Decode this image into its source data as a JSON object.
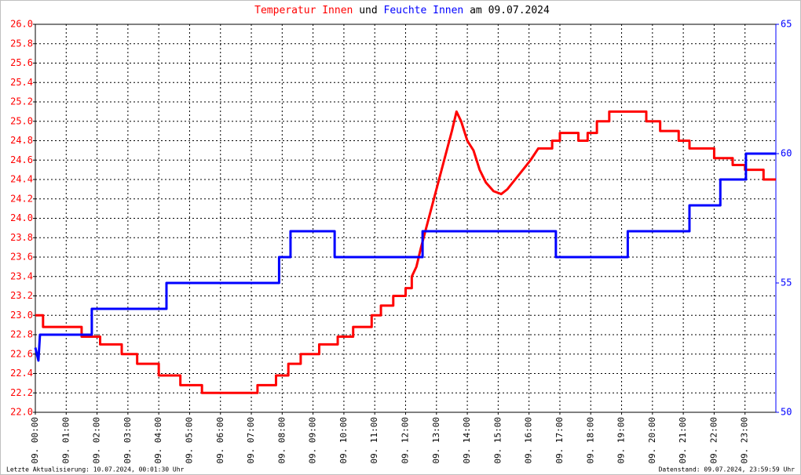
{
  "chart_data": {
    "type": "line",
    "title_connector": "und",
    "title_date": "am 09.07.2024",
    "footer_left": "Letzte Aktualisierung: 10.07.2024, 00:01:30 Uhr",
    "footer_right": "Datenstand: 09.07.2024, 23:59:59 Uhr",
    "grid": true,
    "xlim": [
      0,
      24
    ],
    "xticks": [
      {
        "value": 0,
        "label": "09. 00:00"
      },
      {
        "value": 1,
        "label": "09. 01:00"
      },
      {
        "value": 2,
        "label": "09. 02:00"
      },
      {
        "value": 3,
        "label": "09. 03:00"
      },
      {
        "value": 4,
        "label": "09. 04:00"
      },
      {
        "value": 5,
        "label": "09. 05:00"
      },
      {
        "value": 6,
        "label": "09. 06:00"
      },
      {
        "value": 7,
        "label": "09. 07:00"
      },
      {
        "value": 8,
        "label": "09. 08:00"
      },
      {
        "value": 9,
        "label": "09. 09:00"
      },
      {
        "value": 10,
        "label": "09. 10:00"
      },
      {
        "value": 11,
        "label": "09. 11:00"
      },
      {
        "value": 12,
        "label": "09. 12:00"
      },
      {
        "value": 13,
        "label": "09. 13:00"
      },
      {
        "value": 14,
        "label": "09. 14:00"
      },
      {
        "value": 15,
        "label": "09. 15:00"
      },
      {
        "value": 16,
        "label": "09. 16:00"
      },
      {
        "value": 17,
        "label": "09. 17:00"
      },
      {
        "value": 18,
        "label": "09. 18:00"
      },
      {
        "value": 19,
        "label": "09. 19:00"
      },
      {
        "value": 20,
        "label": "09. 20:00"
      },
      {
        "value": 21,
        "label": "09. 21:00"
      },
      {
        "value": 22,
        "label": "09. 22:00"
      },
      {
        "value": 23,
        "label": "09. 23:00"
      }
    ],
    "ylim": [
      22,
      26
    ],
    "yticks": [
      {
        "value": 22,
        "label": "22.0"
      },
      {
        "value": 22.2,
        "label": "22.2"
      },
      {
        "value": 22.4,
        "label": "22.4"
      },
      {
        "value": 22.6,
        "label": "22.6"
      },
      {
        "value": 22.8,
        "label": "22.8"
      },
      {
        "value": 23,
        "label": "23.0"
      },
      {
        "value": 23.2,
        "label": "23.2"
      },
      {
        "value": 23.4,
        "label": "23.4"
      },
      {
        "value": 23.6,
        "label": "23.6"
      },
      {
        "value": 23.8,
        "label": "23.8"
      },
      {
        "value": 24,
        "label": "24.0"
      },
      {
        "value": 24.2,
        "label": "24.2"
      },
      {
        "value": 24.4,
        "label": "24.4"
      },
      {
        "value": 24.6,
        "label": "24.6"
      },
      {
        "value": 24.8,
        "label": "24.8"
      },
      {
        "value": 25,
        "label": "25.0"
      },
      {
        "value": 25.2,
        "label": "25.2"
      },
      {
        "value": 25.4,
        "label": "25.4"
      },
      {
        "value": 25.6,
        "label": "25.6"
      },
      {
        "value": 25.8,
        "label": "25.8"
      },
      {
        "value": 26,
        "label": "26.0"
      }
    ],
    "y2lim": [
      50,
      65
    ],
    "y2ticks": [
      50,
      55,
      60,
      65
    ],
    "series": [
      {
        "name": "Temperatur Innen",
        "color": "#ff0000",
        "x": [
          0,
          0.25,
          0.25,
          1.5,
          1.5,
          2.1,
          2.1,
          2.8,
          2.8,
          3.3,
          3.3,
          4.0,
          4.0,
          4.7,
          4.7,
          5.4,
          5.4,
          7.2,
          7.2,
          7.8,
          7.8,
          8.2,
          8.2,
          8.6,
          8.6,
          9.2,
          9.2,
          9.8,
          9.8,
          10.3,
          10.3,
          10.9,
          10.9,
          11.2,
          11.2,
          11.6,
          11.6,
          12.0,
          12.0,
          12.2,
          12.2,
          12.35,
          12.5,
          12.75,
          13.0,
          13.25,
          13.5,
          13.65,
          13.8,
          14.0,
          14.2,
          14.4,
          14.6,
          14.85,
          15.1,
          15.3,
          15.55,
          15.8,
          16.05,
          16.3,
          16.75,
          16.75,
          17.0,
          17.0,
          17.6,
          17.6,
          17.9,
          17.9,
          18.2,
          18.2,
          18.6,
          18.6,
          19.8,
          19.8,
          20.25,
          20.25,
          20.85,
          20.85,
          21.2,
          21.2,
          22.0,
          22.0,
          22.6,
          22.6,
          23.0,
          23.0,
          23.6,
          23.6,
          24.0
        ],
        "values": [
          23.0,
          23.0,
          22.88,
          22.88,
          22.78,
          22.78,
          22.7,
          22.7,
          22.6,
          22.6,
          22.5,
          22.5,
          22.38,
          22.38,
          22.28,
          22.28,
          22.2,
          22.2,
          22.28,
          22.28,
          22.38,
          22.38,
          22.5,
          22.5,
          22.6,
          22.6,
          22.7,
          22.7,
          22.78,
          22.78,
          22.88,
          22.88,
          23.0,
          23.0,
          23.1,
          23.1,
          23.2,
          23.2,
          23.28,
          23.28,
          23.4,
          23.5,
          23.7,
          24.0,
          24.3,
          24.6,
          24.9,
          25.1,
          25.0,
          24.8,
          24.7,
          24.5,
          24.37,
          24.28,
          24.25,
          24.3,
          24.4,
          24.5,
          24.6,
          24.72,
          24.72,
          24.8,
          24.8,
          24.88,
          24.88,
          24.8,
          24.8,
          24.88,
          24.88,
          25.0,
          25.0,
          25.1,
          25.1,
          25.0,
          25.0,
          24.9,
          24.9,
          24.8,
          24.8,
          24.72,
          24.72,
          24.62,
          24.62,
          24.55,
          24.55,
          24.5,
          24.5,
          24.4,
          24.4
        ]
      },
      {
        "name": "Feuchte Innen",
        "color": "#0000ff",
        "axis": "y2",
        "x": [
          0,
          0.1,
          0.15,
          1.83,
          1.83,
          4.25,
          4.25,
          7.9,
          7.9,
          8.27,
          8.27,
          9.7,
          9.7,
          12.55,
          12.55,
          16.87,
          16.87,
          19.2,
          19.2,
          21.2,
          21.2,
          22.2,
          22.2,
          23.03,
          23.03,
          24.0
        ],
        "values": [
          52.5,
          52.0,
          53.0,
          53.0,
          54.0,
          54.0,
          55.0,
          55.0,
          56.0,
          56.0,
          57.0,
          57.0,
          56.0,
          56.0,
          57.0,
          57.0,
          56.0,
          56.0,
          57.0,
          57.0,
          58.0,
          58.0,
          59.0,
          59.0,
          60.0,
          60.0
        ]
      }
    ]
  }
}
